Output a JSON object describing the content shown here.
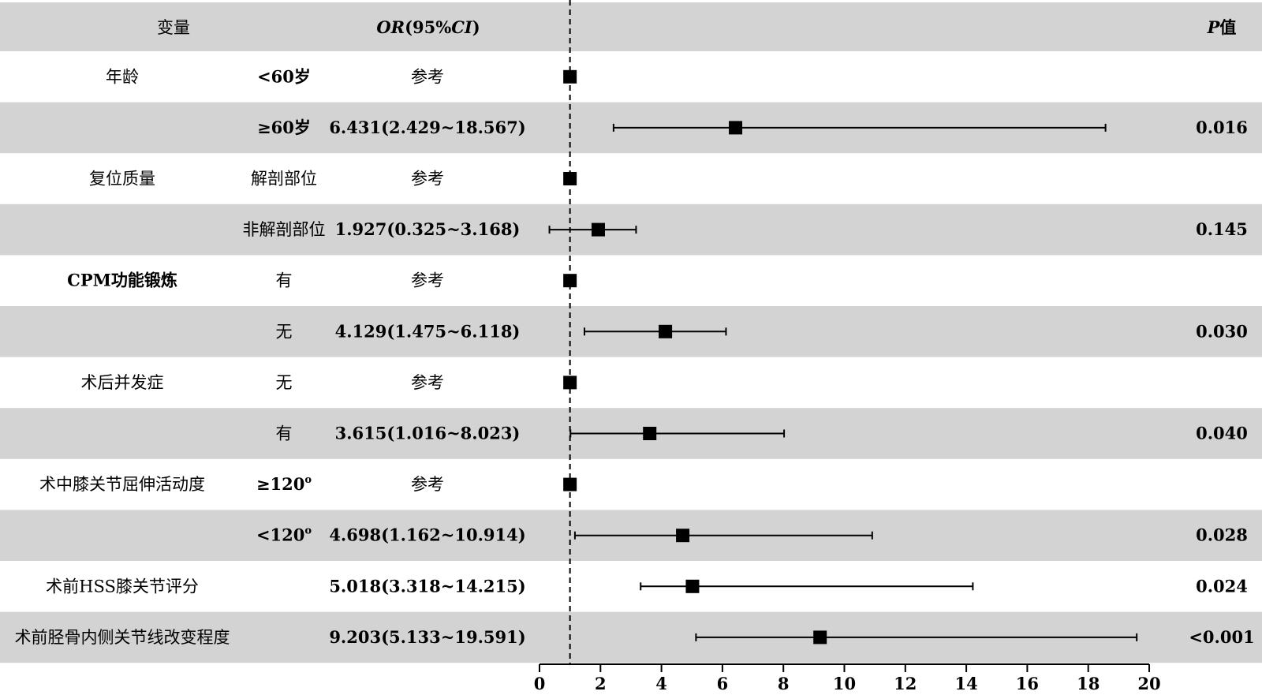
{
  "header": {
    "variable": "变量",
    "or_ci_or": "OR",
    "or_ci_rest": "(95%",
    "or_ci_ci": "CI",
    "or_ci_close": ")",
    "p_italic": "P",
    "p_rest": "值"
  },
  "colors": {
    "band": "#d3d3d3",
    "marker": "#000000"
  },
  "chart_data": {
    "type": "forest",
    "reference_line": 1,
    "xlim": [
      0,
      20
    ],
    "xticks": [
      0,
      2,
      4,
      6,
      8,
      10,
      12,
      14,
      16,
      18,
      20
    ],
    "rows": [
      {
        "variable": "年龄",
        "level": "<60岁",
        "ci_text": "参考",
        "or": 1,
        "lo": 1,
        "hi": 1,
        "p": ""
      },
      {
        "variable": "",
        "level": "≥60岁",
        "ci_text": "6.431(2.429~18.567)",
        "or": 6.431,
        "lo": 2.429,
        "hi": 18.567,
        "p": "0.016"
      },
      {
        "variable": "复位质量",
        "level": "解剖部位",
        "ci_text": "参考",
        "or": 1,
        "lo": 1,
        "hi": 1,
        "p": ""
      },
      {
        "variable": "",
        "level": "非解剖部位",
        "ci_text": "1.927(0.325~3.168)",
        "or": 1.927,
        "lo": 0.325,
        "hi": 3.168,
        "p": "0.145"
      },
      {
        "variable": "CPM功能锻炼",
        "level": "有",
        "ci_text": "参考",
        "or": 1,
        "lo": 1,
        "hi": 1,
        "p": ""
      },
      {
        "variable": "",
        "level": "无",
        "ci_text": "4.129(1.475~6.118)",
        "or": 4.129,
        "lo": 1.475,
        "hi": 6.118,
        "p": "0.030"
      },
      {
        "variable": "术后并发症",
        "level": "无",
        "ci_text": "参考",
        "or": 1,
        "lo": 1,
        "hi": 1,
        "p": ""
      },
      {
        "variable": "",
        "level": "有",
        "ci_text": "3.615(1.016~8.023)",
        "or": 3.615,
        "lo": 1.016,
        "hi": 8.023,
        "p": "0.040"
      },
      {
        "variable": "术中膝关节屈伸活动度",
        "level": "≥120",
        "level_sup": "o",
        "ci_text": "参考",
        "or": 1,
        "lo": 1,
        "hi": 1,
        "p": ""
      },
      {
        "variable": "",
        "level": "<120",
        "level_sup": "o",
        "ci_text": "4.698(1.162~10.914)",
        "or": 4.698,
        "lo": 1.162,
        "hi": 10.914,
        "p": "0.028"
      },
      {
        "variable": "术前HSS膝关节评分",
        "level": "",
        "ci_text": "5.018(3.318~14.215)",
        "or": 5.018,
        "lo": 3.318,
        "hi": 14.215,
        "p": "0.024"
      },
      {
        "variable": "术前胫骨内侧关节线改变程度",
        "level": "",
        "ci_text": "9.203(5.133~19.591)",
        "or": 9.203,
        "lo": 5.133,
        "hi": 19.591,
        "p": "<0.001"
      }
    ]
  }
}
